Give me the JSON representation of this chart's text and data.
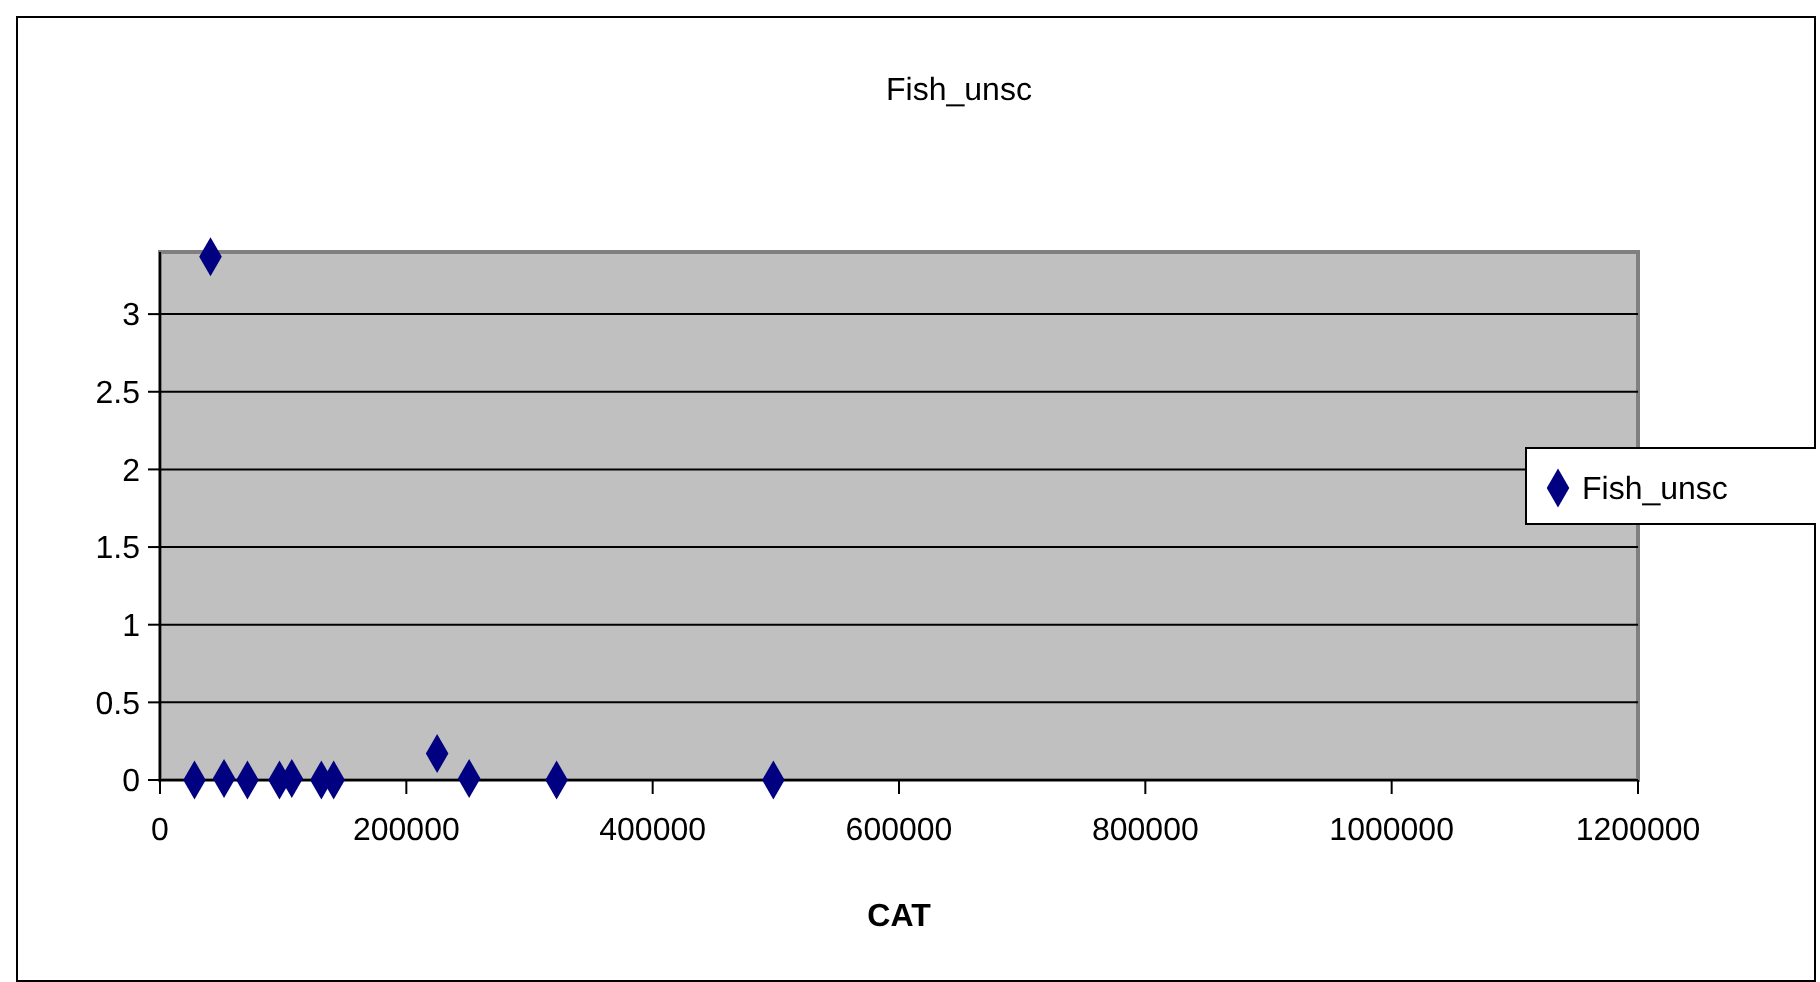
{
  "chart_data": {
    "type": "scatter",
    "title": "Fish_unsc",
    "xlabel": "CAT",
    "x": [
      28000,
      41000,
      52000,
      71000,
      97000,
      107000,
      131000,
      141000,
      225000,
      251000,
      322000,
      498000
    ],
    "series": [
      {
        "name": "Fish_unsc",
        "color": "#000080",
        "values": [
          0,
          3.37,
          0.01,
          0,
          0,
          0.01,
          0,
          0,
          0.17,
          0.01,
          0,
          0
        ]
      }
    ],
    "xlim": [
      0,
      1200000
    ],
    "xticks": [
      0,
      200000,
      400000,
      600000,
      800000,
      1000000,
      1200000
    ],
    "ylim": [
      0,
      3.4
    ],
    "yticks": [
      0,
      0.5,
      1,
      1.5,
      2,
      2.5,
      3
    ],
    "grid": "y",
    "legend": "right",
    "marker": "diamond"
  }
}
